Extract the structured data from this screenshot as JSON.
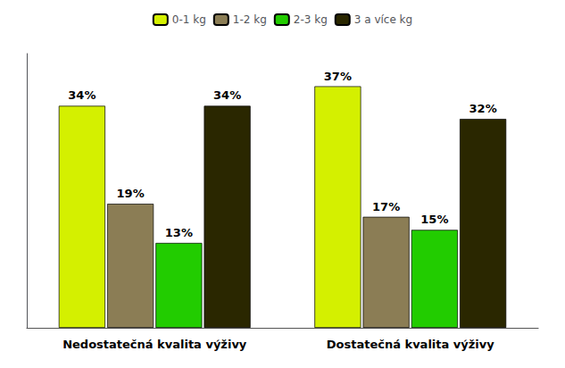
{
  "chart_data": {
    "type": "bar",
    "categories": [
      "Nedostatečná kvalita výživy",
      "Dostatečná kvalita výživy"
    ],
    "series": [
      {
        "name": "0-1 kg",
        "color": "#d4f000",
        "values": [
          34,
          37
        ],
        "value_labels": [
          "34%",
          "37%"
        ]
      },
      {
        "name": "1-2 kg",
        "color": "#8b7d55",
        "values": [
          19,
          17
        ],
        "value_labels": [
          "19%",
          "17%"
        ]
      },
      {
        "name": "2-3 kg",
        "color": "#22cc00",
        "values": [
          13,
          15
        ],
        "value_labels": [
          "13%",
          "15%"
        ]
      },
      {
        "name": "3 a více kg",
        "color": "#2a2700",
        "values": [
          34,
          32
        ],
        "value_labels": [
          "34%",
          "32%"
        ]
      }
    ],
    "ylim": [
      0,
      42
    ],
    "grid": false,
    "legend": "top",
    "data_labels": true,
    "tick_labels": "x"
  }
}
